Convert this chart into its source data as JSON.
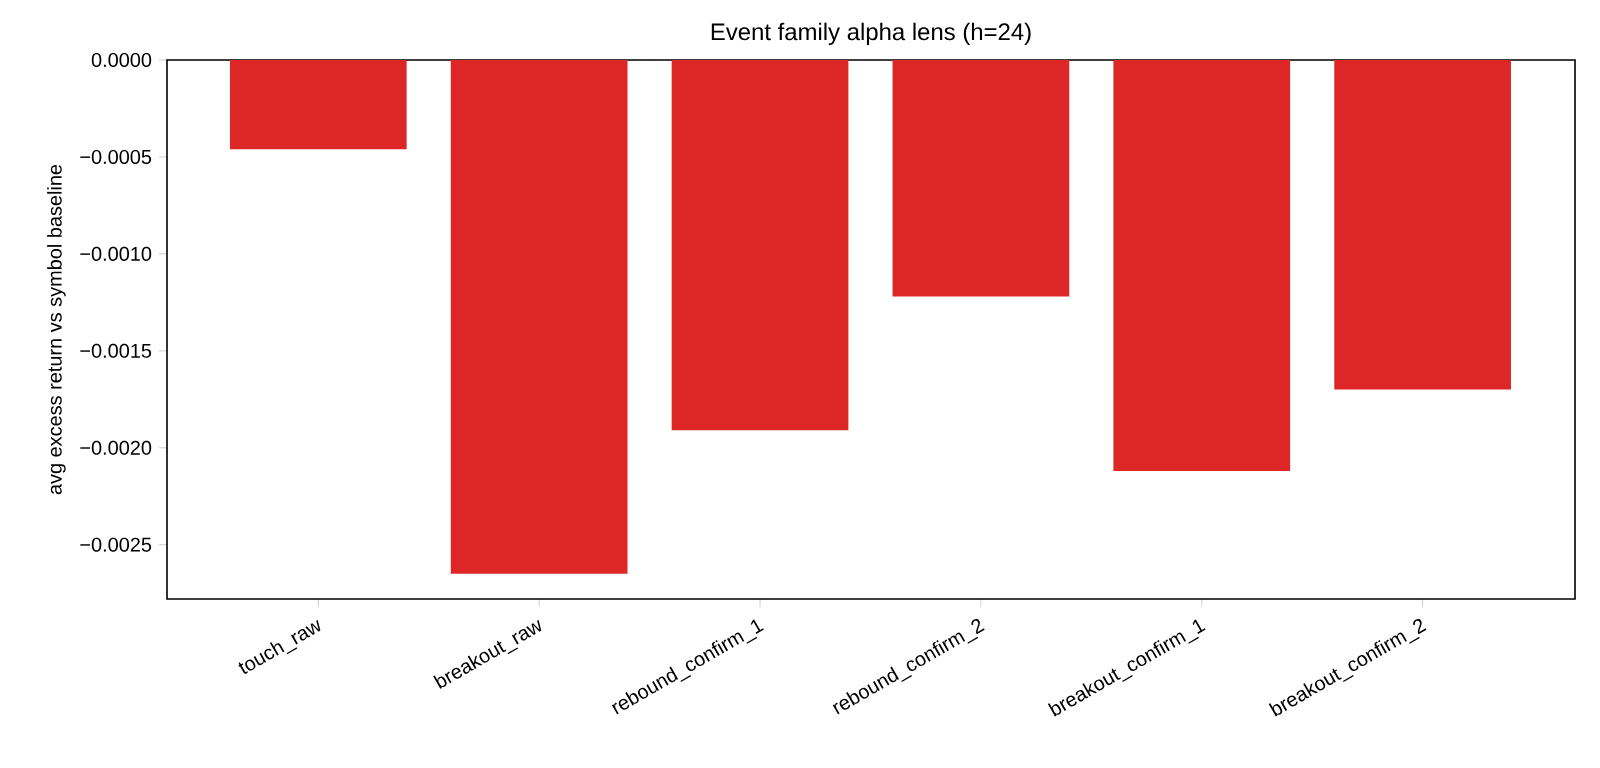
{
  "chart_data": {
    "type": "bar",
    "title": "Event family alpha lens (h=24)",
    "ylabel": "avg excess return vs symbol baseline",
    "categories": [
      "touch_raw",
      "breakout_raw",
      "rebound_confirm_1",
      "rebound_confirm_2",
      "breakout_confirm_1",
      "breakout_confirm_2"
    ],
    "values": [
      -0.00046,
      -0.00265,
      -0.00191,
      -0.00122,
      -0.00212,
      -0.0017
    ],
    "color": "#dd2727",
    "ylim": [
      -0.00278,
      0
    ],
    "yticks": [
      {
        "value": -0.0025,
        "label": "−0.0025"
      },
      {
        "value": -0.002,
        "label": "−0.0020"
      },
      {
        "value": -0.0015,
        "label": "−0.0015"
      },
      {
        "value": -0.001,
        "label": "−0.0010"
      },
      {
        "value": -0.0005,
        "label": "−0.0005"
      },
      {
        "value": 0,
        "label": "0.0000"
      }
    ],
    "grid": false
  }
}
